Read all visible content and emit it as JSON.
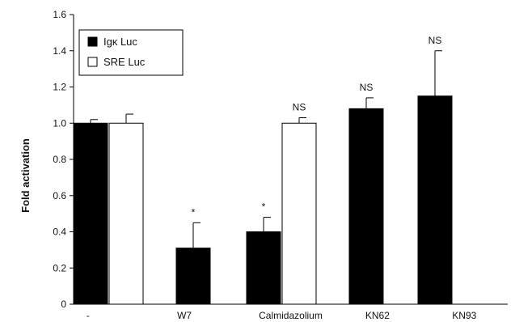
{
  "chart_data": {
    "type": "bar",
    "title": "",
    "xlabel": "",
    "ylabel": "Fold activation",
    "ylim": [
      0,
      1.6
    ],
    "yticks": [
      "0",
      "0.2",
      "0.4",
      "0.6",
      "0.8",
      "1.0",
      "1.2",
      "1.4",
      "1.6"
    ],
    "categories": [
      "-",
      "W7",
      "Calmidazolium",
      "KN62",
      "KN93"
    ],
    "series": [
      {
        "name": "Igκ Luc",
        "color": "#000000",
        "values": [
          1.0,
          0.31,
          0.4,
          1.08,
          1.15
        ],
        "errors": [
          0.02,
          0.14,
          0.08,
          0.06,
          0.25
        ],
        "annotations": [
          "",
          "*",
          "*",
          "NS",
          "NS"
        ]
      },
      {
        "name": "SRE Luc",
        "color": "#ffffff",
        "values": [
          1.0,
          null,
          1.0,
          null,
          null
        ],
        "errors": [
          0.05,
          null,
          0.03,
          null,
          null
        ],
        "annotations": [
          "",
          "",
          "NS",
          "",
          ""
        ]
      }
    ],
    "grid": false,
    "legend_position": "top-left"
  }
}
